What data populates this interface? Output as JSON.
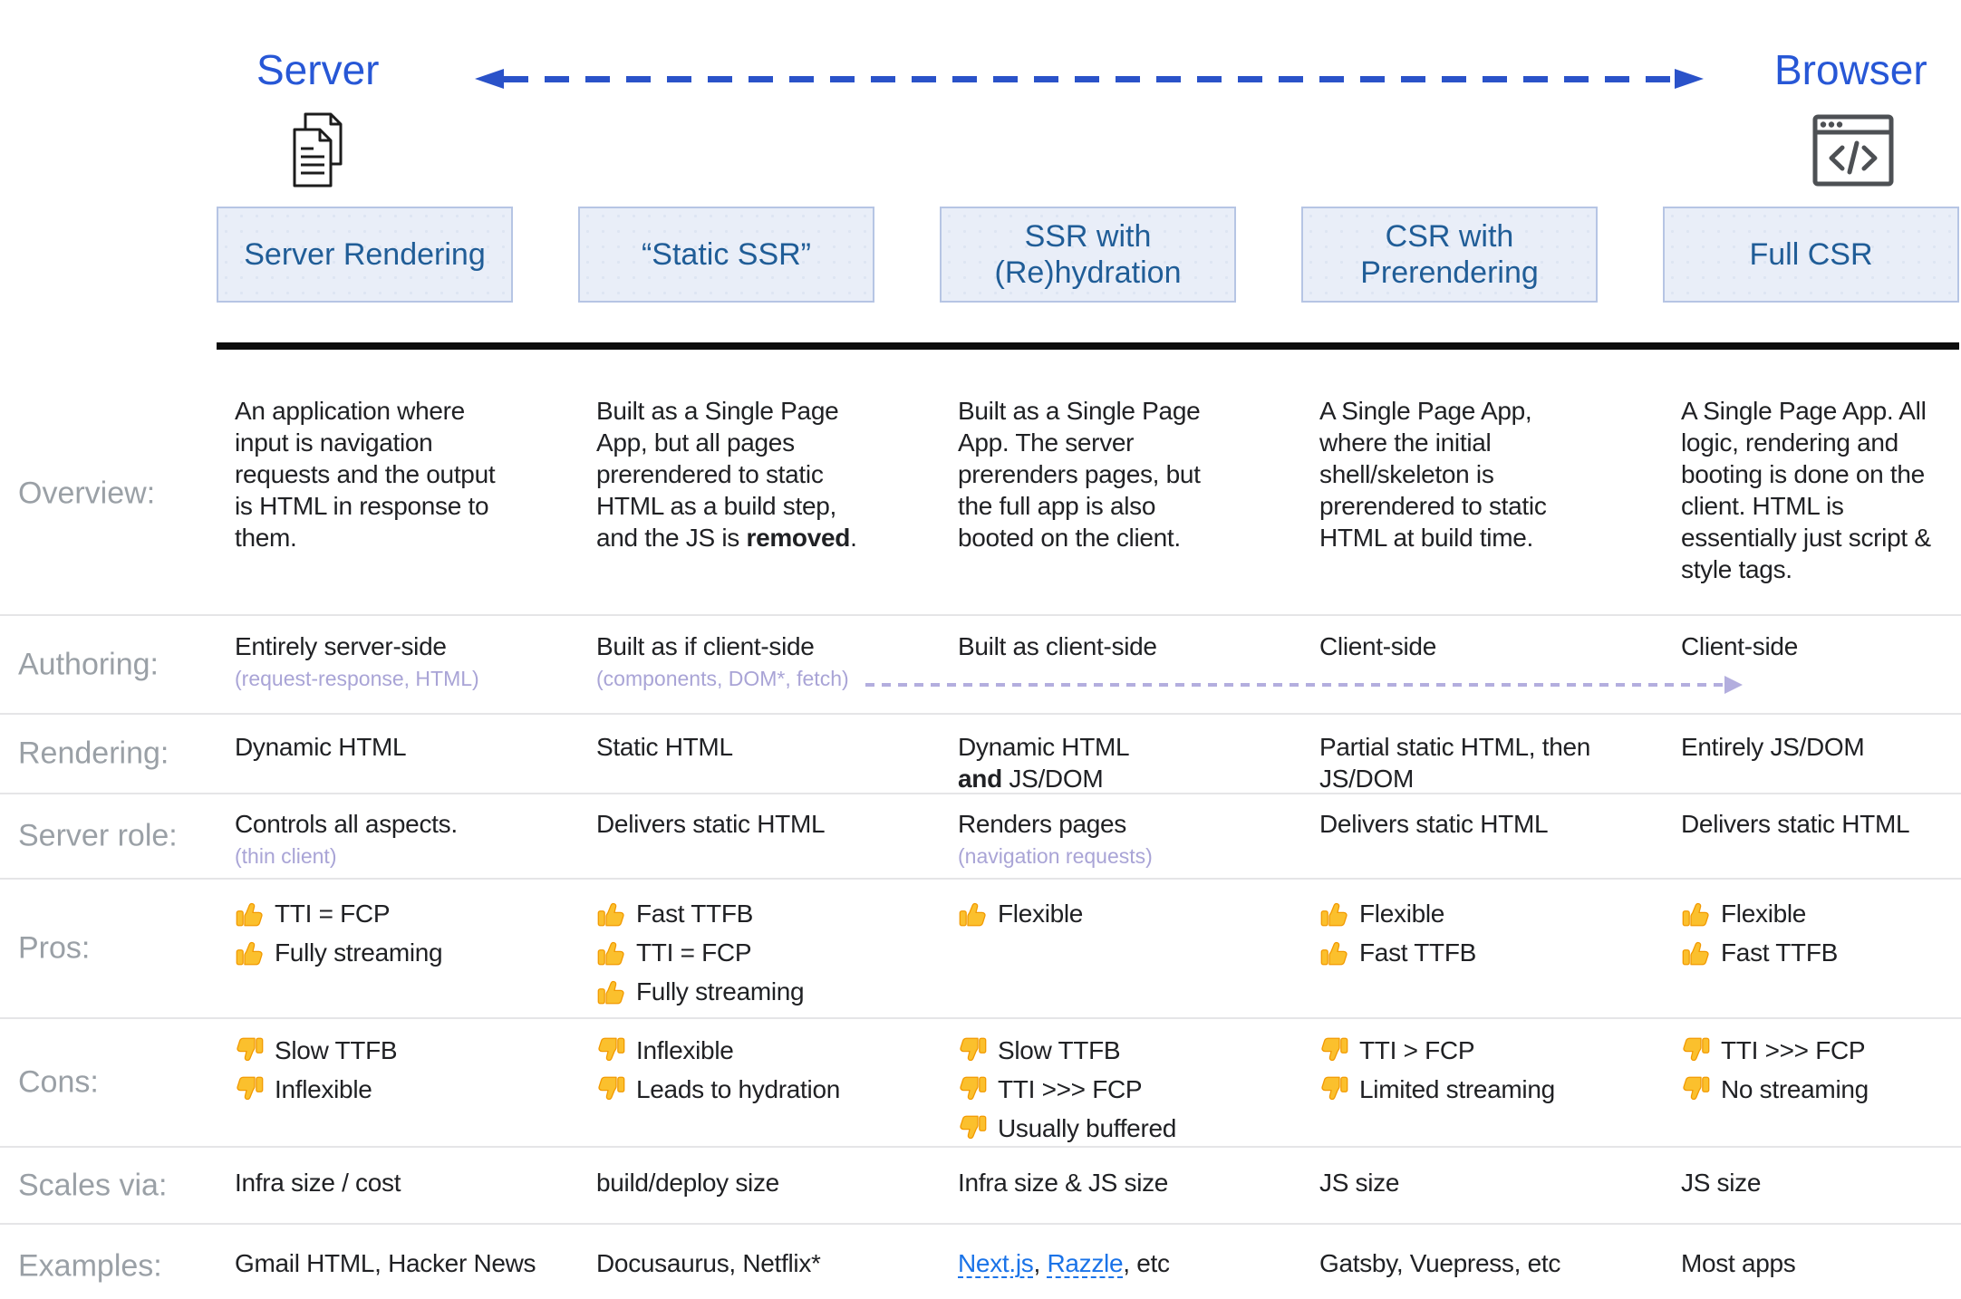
{
  "header": {
    "server_label": "Server",
    "browser_label": "Browser"
  },
  "row_labels": {
    "overview": "Overview:",
    "authoring": "Authoring:",
    "rendering": "Rendering:",
    "server_role": "Server role:",
    "pros": "Pros:",
    "cons": "Cons:",
    "scales": "Scales via:",
    "examples": "Examples:"
  },
  "columns": [
    {
      "title": "Server Rendering",
      "overview": "An application where input is navigation requests and the output is HTML in response to them.",
      "authoring": "Entirely server-side",
      "authoring_note": "(request-response, HTML)",
      "rendering": "Dynamic HTML",
      "server_role": "Controls all aspects.",
      "server_role_note": "(thin client)",
      "pros": [
        "TTI = FCP",
        "Fully streaming"
      ],
      "cons": [
        "Slow TTFB",
        "Inflexible"
      ],
      "scales_via": "Infra size / cost",
      "examples": "Gmail HTML, Hacker News"
    },
    {
      "title": "“Static SSR”",
      "overview_pre": "Built as a Single Page App, but all pages prerendered to static HTML as a build step, and the JS is ",
      "overview_bold": "removed",
      "overview_post": ".",
      "authoring": "Built as if client-side",
      "authoring_note": "(components, DOM*, fetch)",
      "rendering": "Static HTML",
      "server_role": "Delivers static HTML",
      "pros": [
        "Fast TTFB",
        "TTI = FCP",
        "Fully streaming"
      ],
      "cons": [
        "Inflexible",
        "Leads to hydration"
      ],
      "scales_via": "build/deploy size",
      "examples": "Docusaurus, Netflix*"
    },
    {
      "title": "SSR with (Re)hydration",
      "overview": "Built as a Single Page App. The server prerenders pages, but the full app is also booted on the client.",
      "authoring": "Built as client-side",
      "rendering_line1": "Dynamic HTML",
      "rendering_bold": "and",
      "rendering_rest": "JS/DOM",
      "server_role": "Renders pages",
      "server_role_note": "(navigation requests)",
      "pros": [
        "Flexible"
      ],
      "cons": [
        "Slow TTFB",
        "TTI >>> FCP",
        "Usually buffered"
      ],
      "scales_via": "Infra size & JS size",
      "examples_link1": "Next.js",
      "examples_sep": ", ",
      "examples_link2": "Razzle",
      "examples_suffix": ", etc"
    },
    {
      "title": "CSR with Prerendering",
      "overview": "A Single Page App, where the initial shell/skeleton is prerendered to static HTML at build time.",
      "authoring": "Client-side",
      "rendering": "Partial static HTML, then JS/DOM",
      "server_role": "Delivers static HTML",
      "pros": [
        "Flexible",
        "Fast TTFB"
      ],
      "cons": [
        "TTI > FCP",
        "Limited streaming"
      ],
      "scales_via": "JS size",
      "examples": "Gatsby, Vuepress, etc"
    },
    {
      "title": "Full CSR",
      "overview": "A Single Page App. All logic, rendering and booting is done on the client. HTML is essentially just script & style tags.",
      "authoring": "Client-side",
      "rendering": "Entirely JS/DOM",
      "server_role": "Delivers static HTML",
      "pros": [
        "Flexible",
        "Fast TTFB"
      ],
      "cons": [
        "TTI >>> FCP",
        "No streaming"
      ],
      "scales_via": "JS size",
      "examples": "Most apps"
    }
  ],
  "colors": {
    "accent_blue": "#2a52c9",
    "label_blue": "#2757d6",
    "box_text_blue": "#205d97",
    "box_fill": "#e9eef8",
    "box_border": "#b6c5e4",
    "row_label_gray": "#9aa0a6",
    "note_purple": "#a9a4d6",
    "link_blue": "#1a73e8",
    "thumb_yellow": "#fbc02d"
  }
}
